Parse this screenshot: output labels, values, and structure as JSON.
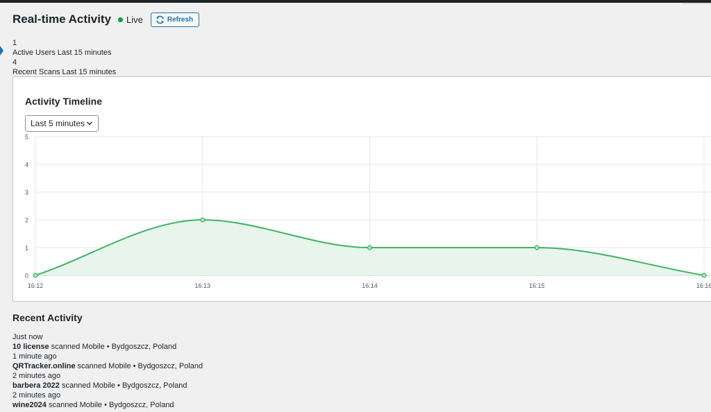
{
  "header": {
    "title": "Real-time Activity",
    "live_label": "Live",
    "refresh_label": "Refresh"
  },
  "stats": {
    "active_users_value": "1",
    "active_users_label": "Active Users Last 15 minutes",
    "recent_scans_value": "4",
    "recent_scans_label": "Recent Scans Last 15 minutes"
  },
  "timeline": {
    "title": "Activity Timeline",
    "range_selected": "Last 5 minutes"
  },
  "chart_data": {
    "type": "area",
    "title": "Activity Timeline",
    "x": [
      "16:12",
      "16:13",
      "16:14",
      "16:15",
      "16:16"
    ],
    "values": [
      0,
      2,
      1,
      1,
      0
    ],
    "ylim": [
      0,
      5
    ],
    "yticks": [
      "0",
      "1",
      "2",
      "3",
      "4",
      "5"
    ],
    "grid": true,
    "line_color": "#3cb462",
    "fill_color": "#e6f4ea"
  },
  "recent": {
    "title": "Recent Activity",
    "items": [
      {
        "time": "Just now",
        "name": "10 license",
        "action": " scanned Mobile • Bydgoszcz, Poland"
      },
      {
        "time": "1 minute ago",
        "name": "QRTracker.online",
        "action": " scanned Mobile • Bydgoszcz, Poland"
      },
      {
        "time": "2 minutes ago",
        "name": "barbera 2022",
        "action": " scanned Mobile • Bydgoszcz, Poland"
      },
      {
        "time": "2 minutes ago",
        "name": "wine2024",
        "action": " scanned Mobile • Bydgoszcz, Poland"
      }
    ]
  },
  "colors": {
    "accent": "#2271b1",
    "live": "#00a32a"
  }
}
